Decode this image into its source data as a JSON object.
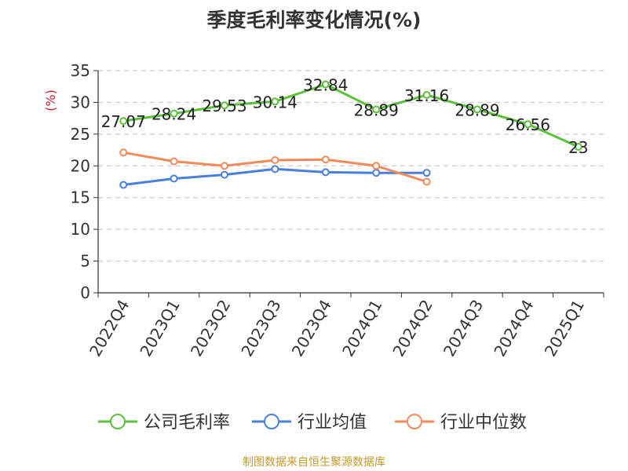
{
  "chart_data": {
    "type": "line",
    "title": "季度毛利率变化情况(%)",
    "ylabel": "(%)",
    "xlabel": "",
    "ylim": [
      0,
      35
    ],
    "yticks": [
      0,
      5,
      10,
      15,
      20,
      25,
      30,
      35
    ],
    "grid": true,
    "legend_position": "bottom",
    "categories": [
      "2022Q4",
      "2023Q1",
      "2023Q2",
      "2023Q3",
      "2023Q4",
      "2024Q1",
      "2024Q2",
      "2024Q3",
      "2024Q4",
      "2025Q1"
    ],
    "series": [
      {
        "name": "公司毛利率",
        "color": "#5cc13a",
        "show_labels": true,
        "values": [
          27.07,
          28.24,
          29.53,
          30.14,
          32.84,
          28.89,
          31.16,
          28.89,
          26.56,
          23
        ]
      },
      {
        "name": "行业均值",
        "color": "#4a7fdb",
        "show_labels": false,
        "values": [
          17.0,
          18.0,
          18.6,
          19.5,
          19.0,
          18.9,
          18.9,
          null,
          null,
          null
        ]
      },
      {
        "name": "行业中位数",
        "color": "#f38a5a",
        "show_labels": false,
        "values": [
          22.1,
          20.7,
          20.0,
          20.9,
          21.0,
          20.0,
          17.5,
          null,
          null,
          null
        ]
      }
    ]
  },
  "source_note": "制图数据来自恒生聚源数据库"
}
